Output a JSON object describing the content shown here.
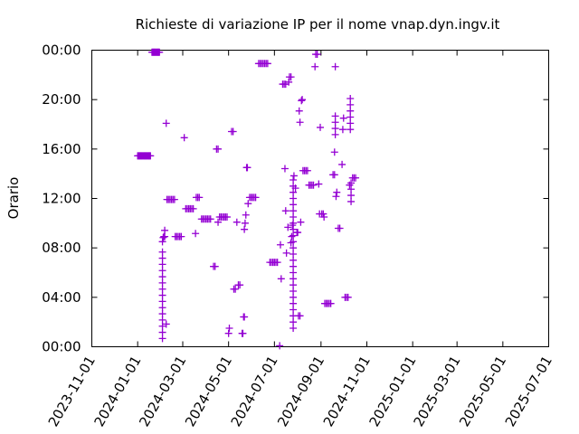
{
  "chart_data": {
    "type": "scatter",
    "title": "Richieste di variazione IP per il nome vnap.dyn.ingv.it",
    "xlabel": "",
    "ylabel": "Orario",
    "x_type": "date",
    "xlim": [
      "2023-11-01",
      "2025-07-01"
    ],
    "ylim": [
      "00:00",
      "24:00"
    ],
    "x_ticks": [
      "2023-11-01",
      "2024-01-01",
      "2024-03-01",
      "2024-05-01",
      "2024-07-01",
      "2024-09-01",
      "2024-11-01",
      "2025-01-01",
      "2025-03-01",
      "2025-05-01",
      "2025-07-01"
    ],
    "y_ticks": [
      "00:00",
      "04:00",
      "08:00",
      "12:00",
      "16:00",
      "20:00",
      "00:00"
    ],
    "marker": "+",
    "color": "#9400d3",
    "grid": false,
    "points": [
      {
        "x": "2024-01-01",
        "y": "15:27"
      },
      {
        "x": "2024-01-02",
        "y": "15:27"
      },
      {
        "x": "2024-01-03",
        "y": "15:27"
      },
      {
        "x": "2024-01-04",
        "y": "15:27"
      },
      {
        "x": "2024-01-05",
        "y": "15:27"
      },
      {
        "x": "2024-01-06",
        "y": "15:27"
      },
      {
        "x": "2024-01-07",
        "y": "15:27"
      },
      {
        "x": "2024-01-08",
        "y": "15:27"
      },
      {
        "x": "2024-01-09",
        "y": "15:27"
      },
      {
        "x": "2024-01-10",
        "y": "15:27"
      },
      {
        "x": "2024-01-11",
        "y": "15:27"
      },
      {
        "x": "2024-01-12",
        "y": "15:27"
      },
      {
        "x": "2024-01-13",
        "y": "15:27"
      },
      {
        "x": "2024-01-14",
        "y": "15:27"
      },
      {
        "x": "2024-01-15",
        "y": "15:27"
      },
      {
        "x": "2024-01-16",
        "y": "15:27"
      },
      {
        "x": "2024-01-17",
        "y": "15:27"
      },
      {
        "x": "2024-01-18",
        "y": "15:27"
      },
      {
        "x": "2024-01-20",
        "y": "23:50"
      },
      {
        "x": "2024-01-21",
        "y": "23:50"
      },
      {
        "x": "2024-01-22",
        "y": "23:50"
      },
      {
        "x": "2024-01-23",
        "y": "23:50"
      },
      {
        "x": "2024-01-24",
        "y": "23:50"
      },
      {
        "x": "2024-01-25",
        "y": "23:50"
      },
      {
        "x": "2024-01-26",
        "y": "23:50"
      },
      {
        "x": "2024-01-27",
        "y": "23:50"
      },
      {
        "x": "2024-01-28",
        "y": "23:50"
      },
      {
        "x": "2024-01-29",
        "y": "23:50"
      },
      {
        "x": "2024-01-30",
        "y": "23:50"
      },
      {
        "x": "2024-02-03",
        "y": "00:40"
      },
      {
        "x": "2024-02-03",
        "y": "01:10"
      },
      {
        "x": "2024-02-03",
        "y": "01:40"
      },
      {
        "x": "2024-02-03",
        "y": "02:10"
      },
      {
        "x": "2024-02-03",
        "y": "02:40"
      },
      {
        "x": "2024-02-03",
        "y": "03:10"
      },
      {
        "x": "2024-02-03",
        "y": "03:40"
      },
      {
        "x": "2024-02-03",
        "y": "04:10"
      },
      {
        "x": "2024-02-03",
        "y": "04:40"
      },
      {
        "x": "2024-02-03",
        "y": "05:10"
      },
      {
        "x": "2024-02-03",
        "y": "05:40"
      },
      {
        "x": "2024-02-03",
        "y": "06:10"
      },
      {
        "x": "2024-02-03",
        "y": "06:40"
      },
      {
        "x": "2024-02-03",
        "y": "07:10"
      },
      {
        "x": "2024-02-03",
        "y": "07:40"
      },
      {
        "x": "2024-02-03",
        "y": "08:30"
      },
      {
        "x": "2024-02-04",
        "y": "08:50"
      },
      {
        "x": "2024-02-05",
        "y": "08:55"
      },
      {
        "x": "2024-02-06",
        "y": "08:55"
      },
      {
        "x": "2024-02-06",
        "y": "09:25"
      },
      {
        "x": "2024-02-08",
        "y": "01:50"
      },
      {
        "x": "2024-02-08",
        "y": "18:05"
      },
      {
        "x": "2024-02-09",
        "y": "11:55"
      },
      {
        "x": "2024-02-11",
        "y": "11:55"
      },
      {
        "x": "2024-02-13",
        "y": "11:55"
      },
      {
        "x": "2024-02-15",
        "y": "11:55"
      },
      {
        "x": "2024-02-17",
        "y": "11:55"
      },
      {
        "x": "2024-02-19",
        "y": "11:55"
      },
      {
        "x": "2024-02-20",
        "y": "08:55"
      },
      {
        "x": "2024-02-22",
        "y": "08:55"
      },
      {
        "x": "2024-02-24",
        "y": "08:55"
      },
      {
        "x": "2024-02-26",
        "y": "08:55"
      },
      {
        "x": "2024-02-28",
        "y": "08:55"
      },
      {
        "x": "2024-03-03",
        "y": "16:55"
      },
      {
        "x": "2024-03-05",
        "y": "11:10"
      },
      {
        "x": "2024-03-07",
        "y": "11:10"
      },
      {
        "x": "2024-03-09",
        "y": "11:10"
      },
      {
        "x": "2024-03-11",
        "y": "11:10"
      },
      {
        "x": "2024-03-13",
        "y": "11:10"
      },
      {
        "x": "2024-03-15",
        "y": "11:10"
      },
      {
        "x": "2024-03-18",
        "y": "09:10"
      },
      {
        "x": "2024-03-19",
        "y": "12:05"
      },
      {
        "x": "2024-03-21",
        "y": "12:05"
      },
      {
        "x": "2024-03-23",
        "y": "12:05"
      },
      {
        "x": "2024-03-26",
        "y": "10:20"
      },
      {
        "x": "2024-03-28",
        "y": "10:20"
      },
      {
        "x": "2024-03-30",
        "y": "10:20"
      },
      {
        "x": "2024-04-01",
        "y": "10:20"
      },
      {
        "x": "2024-04-03",
        "y": "10:20"
      },
      {
        "x": "2024-04-05",
        "y": "10:20"
      },
      {
        "x": "2024-04-07",
        "y": "10:20"
      },
      {
        "x": "2024-04-11",
        "y": "06:30"
      },
      {
        "x": "2024-04-13",
        "y": "06:30"
      },
      {
        "x": "2024-04-15",
        "y": "16:00"
      },
      {
        "x": "2024-04-17",
        "y": "16:00"
      },
      {
        "x": "2024-04-17",
        "y": "10:05"
      },
      {
        "x": "2024-04-19",
        "y": "10:30"
      },
      {
        "x": "2024-04-21",
        "y": "10:30"
      },
      {
        "x": "2024-04-23",
        "y": "10:30"
      },
      {
        "x": "2024-04-25",
        "y": "10:30"
      },
      {
        "x": "2024-04-27",
        "y": "10:30"
      },
      {
        "x": "2024-04-29",
        "y": "10:30"
      },
      {
        "x": "2024-05-01",
        "y": "01:05"
      },
      {
        "x": "2024-05-02",
        "y": "01:30"
      },
      {
        "x": "2024-05-05",
        "y": "17:25"
      },
      {
        "x": "2024-05-07",
        "y": "17:25"
      },
      {
        "x": "2024-05-08",
        "y": "04:40"
      },
      {
        "x": "2024-05-10",
        "y": "04:40"
      },
      {
        "x": "2024-05-12",
        "y": "10:05"
      },
      {
        "x": "2024-05-14",
        "y": "05:00"
      },
      {
        "x": "2024-05-16",
        "y": "05:00"
      },
      {
        "x": "2024-05-19",
        "y": "01:05"
      },
      {
        "x": "2024-05-20",
        "y": "01:05"
      },
      {
        "x": "2024-05-21",
        "y": "02:25"
      },
      {
        "x": "2024-05-22",
        "y": "02:25"
      },
      {
        "x": "2024-05-22",
        "y": "09:30"
      },
      {
        "x": "2024-05-23",
        "y": "10:00"
      },
      {
        "x": "2024-05-24",
        "y": "10:40"
      },
      {
        "x": "2024-05-25",
        "y": "14:30"
      },
      {
        "x": "2024-05-26",
        "y": "14:30"
      },
      {
        "x": "2024-05-27",
        "y": "11:35"
      },
      {
        "x": "2024-05-29",
        "y": "12:05"
      },
      {
        "x": "2024-05-31",
        "y": "12:05"
      },
      {
        "x": "2024-06-02",
        "y": "12:05"
      },
      {
        "x": "2024-06-04",
        "y": "12:05"
      },
      {
        "x": "2024-06-06",
        "y": "12:05"
      },
      {
        "x": "2024-06-10",
        "y": "22:55"
      },
      {
        "x": "2024-06-12",
        "y": "22:55"
      },
      {
        "x": "2024-06-14",
        "y": "22:55"
      },
      {
        "x": "2024-06-16",
        "y": "22:55"
      },
      {
        "x": "2024-06-18",
        "y": "22:55"
      },
      {
        "x": "2024-06-20",
        "y": "22:55"
      },
      {
        "x": "2024-06-22",
        "y": "22:55"
      },
      {
        "x": "2024-06-25",
        "y": "06:50"
      },
      {
        "x": "2024-06-27",
        "y": "06:50"
      },
      {
        "x": "2024-06-29",
        "y": "06:50"
      },
      {
        "x": "2024-07-01",
        "y": "06:50"
      },
      {
        "x": "2024-07-03",
        "y": "06:50"
      },
      {
        "x": "2024-07-05",
        "y": "06:50"
      },
      {
        "x": "2024-07-08",
        "y": "00:05"
      },
      {
        "x": "2024-07-09",
        "y": "08:15"
      },
      {
        "x": "2024-07-10",
        "y": "05:30"
      },
      {
        "x": "2024-07-12",
        "y": "21:15"
      },
      {
        "x": "2024-07-14",
        "y": "21:15"
      },
      {
        "x": "2024-07-16",
        "y": "21:15"
      },
      {
        "x": "2024-07-15",
        "y": "14:25"
      },
      {
        "x": "2024-07-16",
        "y": "11:00"
      },
      {
        "x": "2024-07-17",
        "y": "07:35"
      },
      {
        "x": "2024-07-19",
        "y": "09:40"
      },
      {
        "x": "2024-07-20",
        "y": "21:25"
      },
      {
        "x": "2024-07-21",
        "y": "21:50"
      },
      {
        "x": "2024-07-23",
        "y": "21:50"
      },
      {
        "x": "2024-07-23",
        "y": "08:25"
      },
      {
        "x": "2024-07-24",
        "y": "08:55"
      },
      {
        "x": "2024-07-26",
        "y": "01:30"
      },
      {
        "x": "2024-07-26",
        "y": "02:00"
      },
      {
        "x": "2024-07-26",
        "y": "02:30"
      },
      {
        "x": "2024-07-26",
        "y": "03:00"
      },
      {
        "x": "2024-07-26",
        "y": "03:30"
      },
      {
        "x": "2024-07-26",
        "y": "04:00"
      },
      {
        "x": "2024-07-26",
        "y": "04:30"
      },
      {
        "x": "2024-07-26",
        "y": "05:00"
      },
      {
        "x": "2024-07-26",
        "y": "05:30"
      },
      {
        "x": "2024-07-26",
        "y": "06:00"
      },
      {
        "x": "2024-07-26",
        "y": "06:30"
      },
      {
        "x": "2024-07-26",
        "y": "07:00"
      },
      {
        "x": "2024-07-26",
        "y": "07:30"
      },
      {
        "x": "2024-07-26",
        "y": "08:00"
      },
      {
        "x": "2024-07-26",
        "y": "08:30"
      },
      {
        "x": "2024-07-26",
        "y": "09:00"
      },
      {
        "x": "2024-07-26",
        "y": "09:30"
      },
      {
        "x": "2024-07-26",
        "y": "10:00"
      },
      {
        "x": "2024-07-26",
        "y": "10:30"
      },
      {
        "x": "2024-07-26",
        "y": "11:00"
      },
      {
        "x": "2024-07-26",
        "y": "11:30"
      },
      {
        "x": "2024-07-26",
        "y": "12:00"
      },
      {
        "x": "2024-07-26",
        "y": "12:30"
      },
      {
        "x": "2024-07-26",
        "y": "13:00"
      },
      {
        "x": "2024-07-26",
        "y": "13:30"
      },
      {
        "x": "2024-07-25",
        "y": "09:50"
      },
      {
        "x": "2024-07-27",
        "y": "13:50"
      },
      {
        "x": "2024-07-29",
        "y": "12:50"
      },
      {
        "x": "2024-07-31",
        "y": "09:15"
      },
      {
        "x": "2024-08-01",
        "y": "09:15"
      },
      {
        "x": "2024-08-02",
        "y": "02:30"
      },
      {
        "x": "2024-08-04",
        "y": "02:30"
      },
      {
        "x": "2024-08-03",
        "y": "19:05"
      },
      {
        "x": "2024-08-04",
        "y": "18:10"
      },
      {
        "x": "2024-08-05",
        "y": "10:05"
      },
      {
        "x": "2024-08-06",
        "y": "19:55"
      },
      {
        "x": "2024-08-07",
        "y": "20:00"
      },
      {
        "x": "2024-08-08",
        "y": "14:15"
      },
      {
        "x": "2024-08-10",
        "y": "14:15"
      },
      {
        "x": "2024-08-12",
        "y": "14:15"
      },
      {
        "x": "2024-08-14",
        "y": "14:15"
      },
      {
        "x": "2024-08-16",
        "y": "13:05"
      },
      {
        "x": "2024-08-18",
        "y": "13:05"
      },
      {
        "x": "2024-08-20",
        "y": "13:05"
      },
      {
        "x": "2024-08-22",
        "y": "13:05"
      },
      {
        "x": "2024-08-24",
        "y": "22:40"
      },
      {
        "x": "2024-08-25",
        "y": "23:40"
      },
      {
        "x": "2024-08-27",
        "y": "23:40"
      },
      {
        "x": "2024-08-29",
        "y": "13:10"
      },
      {
        "x": "2024-08-30",
        "y": "10:45"
      },
      {
        "x": "2024-08-31",
        "y": "17:45"
      },
      {
        "x": "2024-09-02",
        "y": "10:45"
      },
      {
        "x": "2024-09-04",
        "y": "10:45"
      },
      {
        "x": "2024-09-05",
        "y": "10:30"
      },
      {
        "x": "2024-09-06",
        "y": "03:30"
      },
      {
        "x": "2024-09-08",
        "y": "03:30"
      },
      {
        "x": "2024-09-10",
        "y": "03:30"
      },
      {
        "x": "2024-09-12",
        "y": "03:30"
      },
      {
        "x": "2024-09-14",
        "y": "03:30"
      },
      {
        "x": "2024-09-17",
        "y": "13:55"
      },
      {
        "x": "2024-09-19",
        "y": "13:55"
      },
      {
        "x": "2024-09-19",
        "y": "15:45"
      },
      {
        "x": "2024-09-20",
        "y": "22:40"
      },
      {
        "x": "2024-09-21",
        "y": "12:10"
      },
      {
        "x": "2024-09-22",
        "y": "12:30"
      },
      {
        "x": "2024-09-20",
        "y": "17:10"
      },
      {
        "x": "2024-09-20",
        "y": "17:40"
      },
      {
        "x": "2024-09-20",
        "y": "18:10"
      },
      {
        "x": "2024-09-20",
        "y": "18:40"
      },
      {
        "x": "2024-09-24",
        "y": "09:35"
      },
      {
        "x": "2024-09-26",
        "y": "09:35"
      },
      {
        "x": "2024-09-29",
        "y": "14:45"
      },
      {
        "x": "2024-09-30",
        "y": "17:35"
      },
      {
        "x": "2024-10-01",
        "y": "18:30"
      },
      {
        "x": "2024-10-03",
        "y": "04:00"
      },
      {
        "x": "2024-10-05",
        "y": "04:00"
      },
      {
        "x": "2024-10-07",
        "y": "04:00"
      },
      {
        "x": "2024-10-09",
        "y": "13:05"
      },
      {
        "x": "2024-10-10",
        "y": "17:35"
      },
      {
        "x": "2024-10-10",
        "y": "18:05"
      },
      {
        "x": "2024-10-10",
        "y": "18:35"
      },
      {
        "x": "2024-10-10",
        "y": "19:05"
      },
      {
        "x": "2024-10-10",
        "y": "19:35"
      },
      {
        "x": "2024-10-10",
        "y": "20:05"
      },
      {
        "x": "2024-10-11",
        "y": "11:45"
      },
      {
        "x": "2024-10-11",
        "y": "12:15"
      },
      {
        "x": "2024-10-11",
        "y": "12:45"
      },
      {
        "x": "2024-10-11",
        "y": "13:15"
      },
      {
        "x": "2024-10-13",
        "y": "13:40"
      },
      {
        "x": "2024-10-15",
        "y": "13:40"
      },
      {
        "x": "2024-10-17",
        "y": "13:40"
      }
    ]
  }
}
